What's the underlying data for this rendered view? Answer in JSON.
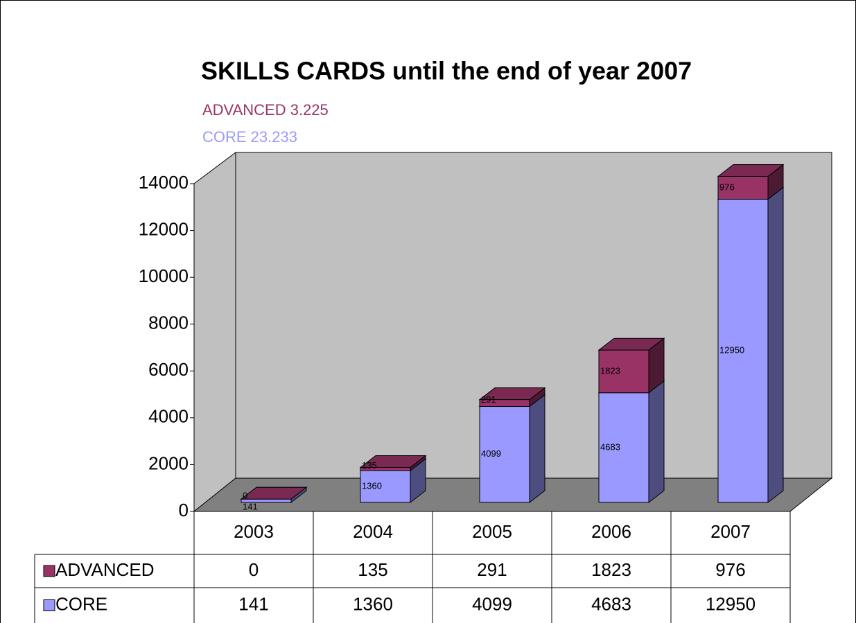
{
  "chart_data": {
    "type": "bar3d_stacked",
    "title": "SKILLS CARDS until the end of year 2007",
    "subtitles": [
      "ADVANCED 3.225",
      "CORE 23.233"
    ],
    "categories": [
      "2003",
      "2004",
      "2005",
      "2006",
      "2007"
    ],
    "series": [
      {
        "name": "CORE",
        "color": "#9999ff",
        "values": [
          141,
          1360,
          4099,
          4683,
          12950
        ]
      },
      {
        "name": "ADVANCED",
        "color": "#993366",
        "values": [
          0,
          135,
          291,
          1823,
          976
        ]
      }
    ],
    "ylim": [
      0,
      14000
    ],
    "yticks": [
      0,
      2000,
      4000,
      6000,
      8000,
      10000,
      12000,
      14000
    ],
    "data_table": true
  }
}
